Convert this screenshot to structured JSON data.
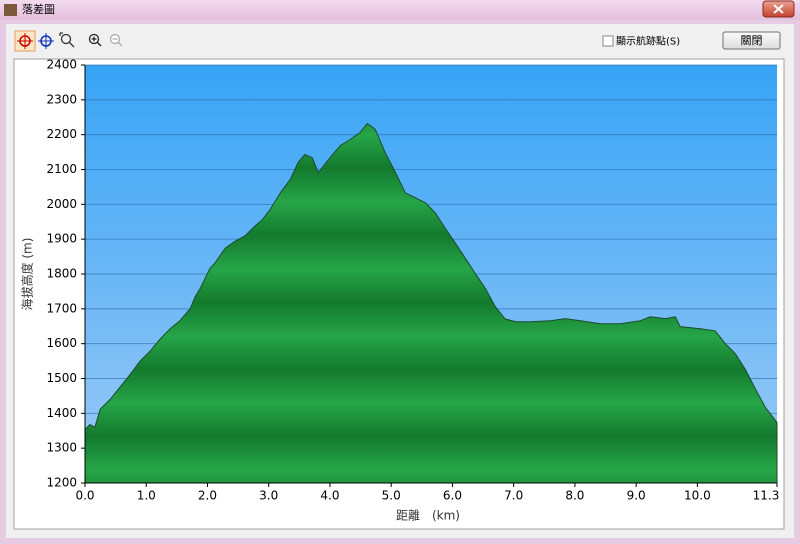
{
  "window": {
    "title": "落差圖"
  },
  "toolbar": {
    "checkbox_label": "顯示航跡點(S)",
    "close_button": "關閉"
  },
  "chart_data": {
    "type": "area",
    "x_label": "距離　(km)",
    "y_label": "海拔高度 (m)",
    "x": [
      0,
      0.08,
      0.16,
      0.25,
      0.41,
      0.57,
      0.74,
      0.9,
      1.06,
      1.23,
      1.39,
      1.55,
      1.72,
      1.8,
      1.88,
      2.04,
      2.12,
      2.29,
      2.45,
      2.61,
      2.78,
      2.89,
      3.02,
      3.19,
      3.35,
      3.48,
      3.59,
      3.71,
      3.81,
      3.87,
      4.0,
      4.17,
      4.33,
      4.49,
      4.61,
      4.74,
      4.9,
      5.07,
      5.23,
      5.39,
      5.56,
      5.72,
      5.88,
      6.05,
      6.21,
      6.37,
      6.54,
      6.7,
      6.86,
      7.03,
      7.27,
      7.6,
      7.84,
      8.09,
      8.42,
      8.74,
      9.07,
      9.23,
      9.48,
      9.64,
      9.72,
      10.05,
      10.29,
      10.46,
      10.62,
      10.78,
      10.95,
      11.11,
      11.3
    ],
    "values": [
      1354,
      1368,
      1360,
      1412,
      1440,
      1475,
      1512,
      1550,
      1578,
      1614,
      1643,
      1666,
      1701,
      1735,
      1758,
      1816,
      1831,
      1874,
      1894,
      1909,
      1938,
      1955,
      1984,
      2033,
      2071,
      2120,
      2143,
      2134,
      2091,
      2105,
      2134,
      2169,
      2186,
      2206,
      2232,
      2215,
      2149,
      2091,
      2033,
      2019,
      2004,
      1975,
      1932,
      1888,
      1845,
      1802,
      1758,
      1706,
      1671,
      1663,
      1663,
      1666,
      1672,
      1666,
      1657,
      1657,
      1666,
      1677,
      1672,
      1677,
      1649,
      1643,
      1637,
      1599,
      1571,
      1527,
      1469,
      1417,
      1374
    ],
    "color": "#1f9a3e",
    "xlim": [
      0,
      11.3
    ],
    "ylim": [
      1200,
      2400
    ],
    "xticks": [
      {
        "value": 0,
        "label": "0.0"
      },
      {
        "value": 1,
        "label": "1.0"
      },
      {
        "value": 2,
        "label": "2.0"
      },
      {
        "value": 3,
        "label": "3.0"
      },
      {
        "value": 4,
        "label": "4.0"
      },
      {
        "value": 5,
        "label": "5.0"
      },
      {
        "value": 6,
        "label": "6.0"
      },
      {
        "value": 7,
        "label": "7.0"
      },
      {
        "value": 8,
        "label": "8.0"
      },
      {
        "value": 9,
        "label": "9.0"
      },
      {
        "value": 10,
        "label": "10.0"
      },
      11.3
    ],
    "yticks": [
      1200,
      1300,
      1400,
      1500,
      1600,
      1700,
      1800,
      1900,
      2000,
      2100,
      2200,
      2300,
      2400
    ],
    "grid": true
  }
}
